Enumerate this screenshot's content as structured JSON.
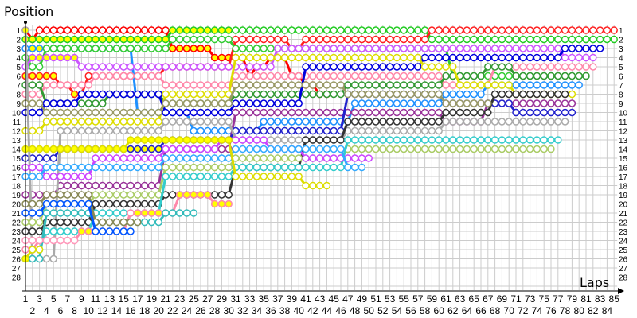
{
  "chart_data": {
    "type": "line",
    "xlabel": "Laps",
    "ylabel": "Position",
    "xlim": [
      1,
      85
    ],
    "ylim": [
      1,
      28
    ],
    "y_inverted": true,
    "grid": true,
    "legend": "none",
    "marker": "circle",
    "filled_marker_color": "#ffff00",
    "x_ticks": [
      1,
      2,
      3,
      4,
      5,
      6,
      7,
      8,
      9,
      10,
      11,
      12,
      13,
      14,
      15,
      16,
      17,
      18,
      19,
      20,
      21,
      22,
      23,
      24,
      25,
      26,
      27,
      28,
      29,
      30,
      31,
      32,
      33,
      34,
      35,
      36,
      37,
      38,
      39,
      40,
      41,
      42,
      43,
      44,
      45,
      46,
      47,
      48,
      49,
      50,
      51,
      52,
      53,
      54,
      55,
      56,
      57,
      58,
      59,
      60,
      61,
      62,
      63,
      64,
      65,
      66,
      67,
      68,
      69,
      70,
      71,
      72,
      73,
      74,
      75,
      76,
      77,
      78,
      79,
      80,
      81,
      82,
      83,
      84,
      85
    ],
    "y_ticks": [
      1,
      2,
      3,
      4,
      5,
      6,
      7,
      8,
      9,
      10,
      11,
      12,
      13,
      14,
      15,
      16,
      17,
      18,
      19,
      20,
      21,
      22,
      23,
      24,
      25,
      26,
      27,
      28
    ],
    "series_format": "segments of [first_lap, last_lap, position, yellow_filled(1/0)]",
    "series": [
      {
        "color": "#ff0000",
        "segments": [
          [
            1,
            1,
            1,
            0
          ],
          [
            2,
            2,
            2,
            1
          ],
          [
            3,
            21,
            1,
            0
          ],
          [
            22,
            27,
            3,
            1
          ],
          [
            28,
            32,
            4,
            1
          ],
          [
            33,
            33,
            6,
            1
          ],
          [
            34,
            35,
            5,
            1
          ],
          [
            36,
            38,
            4,
            1
          ],
          [
            39,
            40,
            6,
            1
          ],
          [
            41,
            42,
            7,
            1
          ],
          [
            43,
            44,
            8,
            1
          ]
        ]
      },
      {
        "color": "#22cc22",
        "segments": [
          [
            1,
            1,
            2,
            1
          ],
          [
            2,
            21,
            2,
            1
          ],
          [
            22,
            30,
            1,
            1
          ],
          [
            31,
            58,
            1,
            0
          ],
          [
            59,
            85,
            2,
            0
          ]
        ]
      },
      {
        "color": "#ff2020",
        "segments": [
          [
            1,
            5,
            6,
            1
          ],
          [
            6,
            7,
            7,
            1
          ],
          [
            8,
            9,
            8,
            1
          ],
          [
            10,
            20,
            6,
            0
          ],
          [
            21,
            30,
            5,
            0
          ],
          [
            31,
            38,
            2,
            0
          ],
          [
            39,
            40,
            3,
            0
          ],
          [
            41,
            58,
            2,
            0
          ],
          [
            59,
            85,
            1,
            0
          ]
        ]
      },
      {
        "color": "#1e90ff",
        "segments": [
          [
            1,
            1,
            3,
            0
          ],
          [
            2,
            16,
            3,
            1
          ],
          [
            17,
            24,
            10,
            0
          ],
          [
            25,
            34,
            12,
            0
          ],
          [
            35,
            47,
            11,
            0
          ],
          [
            48,
            60,
            9,
            0
          ],
          [
            61,
            66,
            8,
            0
          ],
          [
            67,
            80,
            7,
            0
          ]
        ]
      },
      {
        "color": "#33cc33",
        "segments": [
          [
            1,
            1,
            4,
            0
          ],
          [
            2,
            3,
            5,
            0
          ],
          [
            4,
            21,
            3,
            0
          ],
          [
            22,
            30,
            2,
            0
          ],
          [
            31,
            61,
            3,
            0
          ],
          [
            62,
            81,
            6,
            0
          ]
        ]
      },
      {
        "color": "#cc55ff",
        "segments": [
          [
            1,
            1,
            5,
            0
          ],
          [
            2,
            8,
            4,
            1
          ],
          [
            9,
            36,
            5,
            0
          ],
          [
            37,
            77,
            3,
            0
          ],
          [
            78,
            82,
            4,
            0
          ]
        ]
      },
      {
        "color": "#ff88aa",
        "segments": [
          [
            1,
            3,
            8,
            0
          ],
          [
            4,
            10,
            7,
            0
          ],
          [
            11,
            20,
            6,
            0
          ],
          [
            21,
            30,
            7,
            0
          ],
          [
            31,
            60,
            6,
            0
          ],
          [
            61,
            67,
            7,
            0
          ],
          [
            68,
            82,
            5,
            0
          ]
        ]
      },
      {
        "color": "#339933",
        "segments": [
          [
            1,
            3,
            7,
            0
          ],
          [
            4,
            12,
            9,
            0
          ],
          [
            13,
            20,
            8,
            0
          ],
          [
            21,
            30,
            9,
            0
          ],
          [
            31,
            46,
            8,
            0
          ],
          [
            47,
            60,
            7,
            0
          ],
          [
            61,
            66,
            6,
            0
          ],
          [
            67,
            70,
            5,
            0
          ],
          [
            71,
            81,
            6,
            0
          ]
        ]
      },
      {
        "color": "#0000dd",
        "segments": [
          [
            1,
            3,
            10,
            0
          ],
          [
            4,
            8,
            9,
            0
          ],
          [
            9,
            20,
            8,
            0
          ],
          [
            21,
            30,
            10,
            0
          ],
          [
            31,
            40,
            9,
            0
          ],
          [
            41,
            57,
            5,
            0
          ],
          [
            58,
            77,
            4,
            0
          ],
          [
            78,
            83,
            3,
            0
          ]
        ]
      },
      {
        "color": "#dddd00",
        "segments": [
          [
            1,
            3,
            12,
            0
          ],
          [
            4,
            20,
            11,
            0
          ],
          [
            21,
            30,
            8,
            0
          ],
          [
            31,
            57,
            4,
            0
          ],
          [
            58,
            62,
            5,
            0
          ],
          [
            63,
            70,
            7,
            0
          ],
          [
            71,
            79,
            8,
            0
          ]
        ]
      },
      {
        "color": "#993399",
        "segments": [
          [
            1,
            5,
            19,
            0
          ],
          [
            6,
            20,
            18,
            0
          ],
          [
            21,
            30,
            14,
            0
          ],
          [
            31,
            60,
            10,
            0
          ],
          [
            61,
            66,
            11,
            0
          ],
          [
            67,
            79,
            9,
            0
          ]
        ]
      },
      {
        "color": "#2222cc",
        "segments": [
          [
            1,
            5,
            15,
            0
          ],
          [
            6,
            20,
            14,
            1
          ],
          [
            21,
            30,
            13,
            1
          ],
          [
            31,
            46,
            12,
            0
          ],
          [
            47,
            60,
            8,
            0
          ],
          [
            61,
            70,
            9,
            0
          ],
          [
            71,
            79,
            10,
            0
          ]
        ]
      },
      {
        "color": "#aaaaaa",
        "segments": [
          [
            1,
            1,
            1,
            1
          ],
          [
            2,
            5,
            26,
            0
          ],
          [
            6,
            20,
            12,
            0
          ],
          [
            21,
            30,
            11,
            0
          ],
          [
            31,
            46,
            13,
            0
          ],
          [
            47,
            60,
            12,
            0
          ],
          [
            61,
            78,
            11,
            0
          ]
        ]
      },
      {
        "color": "#333333",
        "segments": [
          [
            1,
            3,
            23,
            0
          ],
          [
            4,
            10,
            22,
            0
          ],
          [
            11,
            20,
            20,
            0
          ],
          [
            21,
            30,
            19,
            0
          ],
          [
            31,
            40,
            16,
            0
          ],
          [
            41,
            46,
            13,
            0
          ],
          [
            47,
            60,
            11,
            0
          ],
          [
            61,
            67,
            10,
            0
          ],
          [
            68,
            78,
            8,
            0
          ]
        ]
      },
      {
        "color": "#999966",
        "segments": [
          [
            1,
            3,
            9,
            0
          ],
          [
            4,
            20,
            10,
            0
          ],
          [
            21,
            30,
            9,
            0
          ],
          [
            31,
            46,
            7,
            0
          ],
          [
            47,
            60,
            8,
            0
          ],
          [
            61,
            67,
            9,
            0
          ]
        ]
      },
      {
        "color": "#aacc66",
        "segments": [
          [
            1,
            3,
            22,
            0
          ],
          [
            4,
            10,
            20,
            0
          ],
          [
            11,
            20,
            19,
            0
          ],
          [
            21,
            30,
            16,
            0
          ],
          [
            31,
            46,
            15,
            0
          ],
          [
            47,
            76,
            14,
            0
          ]
        ]
      },
      {
        "color": "#33cccc",
        "segments": [
          [
            1,
            3,
            25,
            0
          ],
          [
            4,
            10,
            23,
            0
          ],
          [
            11,
            20,
            21,
            0
          ],
          [
            21,
            30,
            17,
            0
          ],
          [
            31,
            46,
            16,
            0
          ],
          [
            47,
            77,
            13,
            0
          ]
        ]
      },
      {
        "color": "#ff88aa",
        "segments": [
          [
            1,
            2,
            25,
            0
          ],
          [
            3,
            8,
            24,
            1
          ],
          [
            9,
            15,
            23,
            1
          ],
          [
            16,
            16,
            21,
            0
          ],
          [
            17,
            22,
            21,
            1
          ],
          [
            23,
            27,
            19,
            1
          ],
          [
            28,
            30,
            20,
            1
          ]
        ]
      },
      {
        "color": "#cc44ff",
        "segments": [
          [
            1,
            3,
            16,
            0
          ],
          [
            4,
            10,
            17,
            0
          ],
          [
            11,
            20,
            15,
            0
          ],
          [
            21,
            28,
            14,
            0
          ],
          [
            29,
            35,
            13,
            0
          ],
          [
            36,
            40,
            14,
            0
          ],
          [
            41,
            50,
            15,
            0
          ]
        ]
      },
      {
        "color": "#33aaff",
        "segments": [
          [
            1,
            3,
            17,
            0
          ],
          [
            4,
            20,
            16,
            0
          ],
          [
            21,
            30,
            15,
            0
          ],
          [
            31,
            46,
            14,
            0
          ],
          [
            47,
            49,
            16,
            0
          ]
        ]
      },
      {
        "color": "#dddd00",
        "segments": [
          [
            1,
            15,
            14,
            1
          ],
          [
            16,
            30,
            13,
            1
          ],
          [
            31,
            40,
            17,
            0
          ],
          [
            41,
            44,
            18,
            0
          ]
        ]
      },
      {
        "color": "#33bbbb",
        "segments": [
          [
            1,
            3,
            26,
            0
          ],
          [
            4,
            10,
            21,
            0
          ],
          [
            11,
            20,
            22,
            0
          ],
          [
            21,
            25,
            21,
            0
          ]
        ]
      },
      {
        "color": "#888855",
        "segments": [
          [
            1,
            3,
            20,
            0
          ],
          [
            4,
            10,
            19,
            0
          ],
          [
            11,
            17,
            22,
            0
          ]
        ]
      },
      {
        "color": "#0055ff",
        "segments": [
          [
            1,
            3,
            21,
            0
          ],
          [
            4,
            10,
            20,
            0
          ],
          [
            11,
            16,
            23,
            0
          ]
        ]
      },
      {
        "color": "#ff99bb",
        "segments": [
          [
            1,
            8,
            24,
            0
          ]
        ]
      },
      {
        "color": "#dddd00",
        "segments": [
          [
            1,
            1,
            26,
            1
          ],
          [
            2,
            3,
            25,
            0
          ]
        ]
      }
    ]
  }
}
